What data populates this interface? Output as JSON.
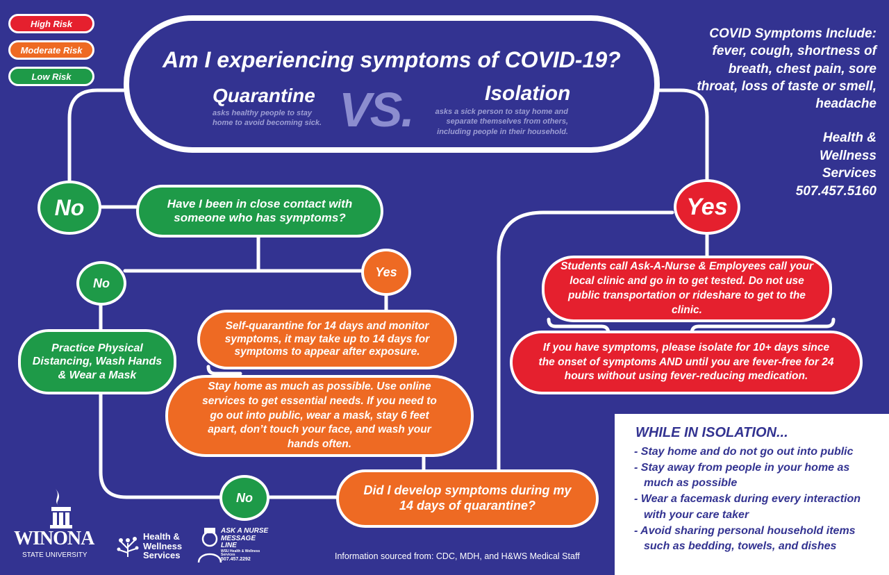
{
  "legend": {
    "high": "High Risk",
    "moderate": "Moderate Risk",
    "low": "Low Risk"
  },
  "colors": {
    "background": "#333391",
    "high": "#e5202e",
    "moderate": "#ee6a23",
    "low": "#1e9a48"
  },
  "header": {
    "title": "Am I experiencing symptoms of COVID-19?",
    "quarantine_label": "Quarantine",
    "quarantine_desc": "asks healthy people to stay home to avoid becoming sick.",
    "vs": "VS.",
    "isolation_label": "Isolation",
    "isolation_desc": "asks a sick person to stay home and separate themselves from others, including people in their household."
  },
  "symptoms": {
    "heading": "COVID Symptoms Include:",
    "list": "fever, cough, shortness of breath, chest pain, sore throat, loss of taste or smell, headache"
  },
  "contact": {
    "line1": "Health &",
    "line2": "Wellness",
    "line3": "Services",
    "phone": "507.457.5160"
  },
  "flow": {
    "no_main": "No",
    "yes_main": "Yes",
    "close_contact_q": "Have I been in close contact with someone who has symptoms?",
    "no_contact": "No",
    "yes_contact": "Yes",
    "practice": "Practice Physical Distancing, Wash Hands & Wear a Mask",
    "self_quarantine": "Self-quarantine for 14 days and monitor symptoms, it may take up to 14 days for symptoms to appear after exposure.",
    "stay_home": "Stay home as much as possible. Use online services to get essential needs. If you need to go out into public, wear a mask, stay 6 feet apart, don’t touch your face, and wash your hands often.",
    "no_symptoms": "No",
    "develop_q": "Did I develop symptoms during my 14 days of quarantine?",
    "call_nurse": "Students call Ask-A-Nurse & Employees call your local clinic and go in to get tested. Do not use public transportation or rideshare to get to the clinic.",
    "isolate": "If you have symptoms, please isolate for 10+ days since the onset of symptoms AND until you are fever-free for 24 hours without using fever-reducing medication."
  },
  "isolation_box": {
    "heading": "WHILE IN ISOLATION...",
    "items": [
      "- Stay home and do not go out into public",
      "- Stay away from people in your home as much as possible",
      "- Wear a facemask during every interaction with your care taker",
      "- Avoid sharing personal household items such as bedding, towels, and dishes"
    ]
  },
  "footer": {
    "winona": "WINONA",
    "state_university": "STATE UNIVERSITY",
    "hws_1": "Health &",
    "hws_2": "Wellness",
    "hws_3": "Services",
    "nurse_1": "ASK A NURSE",
    "nurse_2": "MESSAGE LINE",
    "nurse_3": "WSU Health & Wellness Services",
    "nurse_phone": "507.457.2292",
    "source": "Information sourced from: CDC, MDH, and H&WS Medical Staff"
  }
}
